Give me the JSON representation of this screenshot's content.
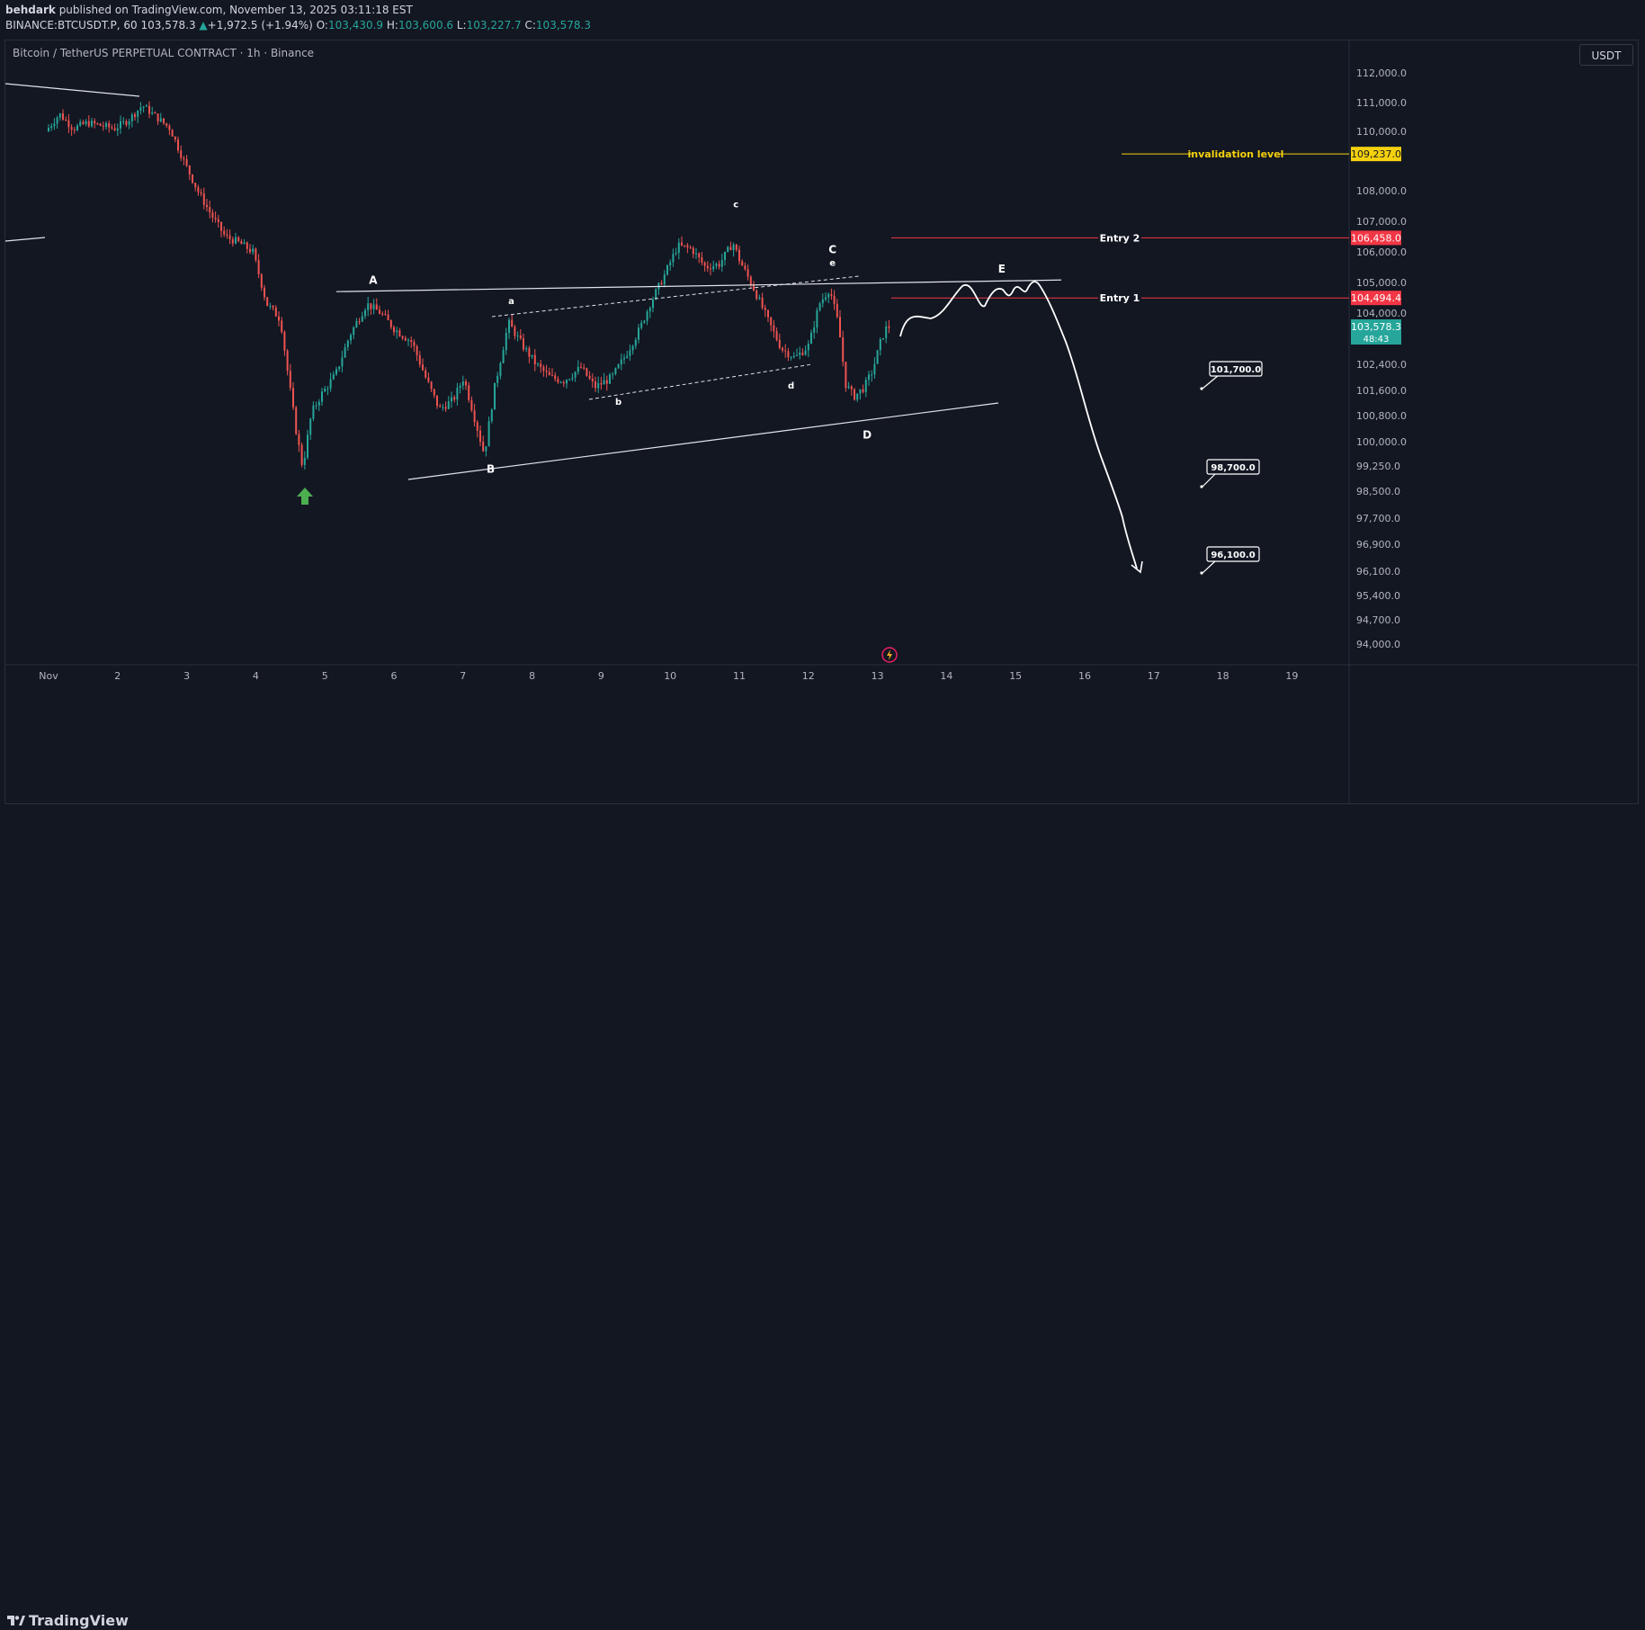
{
  "header": {
    "author": "behdark",
    "published": "published on TradingView.com, November 13, 2025 03:11:18 EST",
    "symbol": "BINANCE:BTCUSDT.P, 60",
    "last": "103,578.3",
    "change": "+1,972.5 (+1.94%)",
    "open_label": "O:",
    "open": "103,430.9",
    "high_label": "H:",
    "high": "103,600.6",
    "low_label": "L:",
    "low": "103,227.7",
    "close_label": "C:",
    "close": "103,578.3"
  },
  "chart_title": "Bitcoin / TetherUS PERPETUAL CONTRACT · 1h · Binance",
  "currency": "USDT",
  "footer": {
    "brand": "TradingView"
  },
  "colors": {
    "background": "#131722",
    "up": "#26a69a",
    "down": "#ef5350",
    "yellow": "#f5d10e",
    "entry_red": "#f23645"
  },
  "chart_data": {
    "type": "candlestick",
    "x_ticks": [
      "Nov",
      "2",
      "3",
      "4",
      "5",
      "6",
      "7",
      "8",
      "9",
      "10",
      "11",
      "12",
      "13",
      "14",
      "15",
      "16",
      "17",
      "18",
      "19"
    ],
    "y_ticks": [
      "112,000.0",
      "111,000.0",
      "110,000.0",
      "108,000.0",
      "107,000.0",
      "106,000.0",
      "105,000.0",
      "104,000.0",
      "102,400.0",
      "101,600.0",
      "100,800.0",
      "100,000.0",
      "99,250.0",
      "98,500.0",
      "97,700.0",
      "96,900.0",
      "96,100.0",
      "95,400.0",
      "94,700.0",
      "94,000.0"
    ],
    "y_tick_values": [
      112000,
      111000,
      110000,
      108000,
      107000,
      106000,
      105000,
      104000,
      102400,
      101600,
      100800,
      100000,
      99250,
      98500,
      97700,
      96900,
      96100,
      95400,
      94700,
      94000
    ],
    "price_path": [
      [
        1.0,
        110000
      ],
      [
        1.2,
        110600
      ],
      [
        1.4,
        110100
      ],
      [
        1.6,
        110300
      ],
      [
        1.8,
        110200
      ],
      [
        2.0,
        110100
      ],
      [
        2.2,
        110400
      ],
      [
        2.4,
        110900
      ],
      [
        2.6,
        110500
      ],
      [
        2.8,
        110100
      ],
      [
        3.0,
        109000
      ],
      [
        3.2,
        108000
      ],
      [
        3.4,
        107200
      ],
      [
        3.6,
        106500
      ],
      [
        3.8,
        106300
      ],
      [
        4.0,
        106000
      ],
      [
        4.2,
        104300
      ],
      [
        4.4,
        103800
      ],
      [
        4.5,
        102200
      ],
      [
        4.62,
        100400
      ],
      [
        4.72,
        99200
      ],
      [
        4.85,
        100900
      ],
      [
        5.0,
        101500
      ],
      [
        5.2,
        102100
      ],
      [
        5.4,
        103300
      ],
      [
        5.65,
        104300
      ],
      [
        5.85,
        104000
      ],
      [
        6.05,
        103500
      ],
      [
        6.3,
        103100
      ],
      [
        6.5,
        102000
      ],
      [
        6.7,
        101000
      ],
      [
        6.9,
        101300
      ],
      [
        7.05,
        102000
      ],
      [
        7.2,
        100800
      ],
      [
        7.35,
        99600
      ],
      [
        7.5,
        101700
      ],
      [
        7.7,
        103700
      ],
      [
        7.9,
        103000
      ],
      [
        8.1,
        102400
      ],
      [
        8.3,
        102000
      ],
      [
        8.5,
        101900
      ],
      [
        8.75,
        102300
      ],
      [
        8.95,
        101700
      ],
      [
        9.2,
        102000
      ],
      [
        9.4,
        102700
      ],
      [
        9.6,
        103500
      ],
      [
        9.75,
        104300
      ],
      [
        9.95,
        105200
      ],
      [
        10.15,
        106200
      ],
      [
        10.35,
        106100
      ],
      [
        10.55,
        105500
      ],
      [
        10.75,
        105600
      ],
      [
        10.95,
        106300
      ],
      [
        11.05,
        105700
      ],
      [
        11.25,
        104800
      ],
      [
        11.45,
        103800
      ],
      [
        11.65,
        102900
      ],
      [
        11.85,
        102600
      ],
      [
        12.05,
        103000
      ],
      [
        12.2,
        104300
      ],
      [
        12.35,
        104800
      ],
      [
        12.48,
        103600
      ],
      [
        12.58,
        101800
      ],
      [
        12.7,
        101400
      ],
      [
        12.85,
        101700
      ],
      [
        12.97,
        102200
      ],
      [
        13.1,
        103200
      ],
      [
        13.18,
        103578
      ]
    ],
    "annotations": {
      "labels": [
        {
          "text": "A",
          "x": 5.7,
          "y": 104950
        },
        {
          "text": "B",
          "x": 7.4,
          "y": 99050
        },
        {
          "text": "C",
          "x": 12.35,
          "y": 105950
        },
        {
          "text": "D",
          "x": 12.85,
          "y": 100100
        },
        {
          "text": "E",
          "x": 14.8,
          "y": 105320
        },
        {
          "text": "a",
          "x": 7.7,
          "y": 104300
        },
        {
          "text": "b",
          "x": 9.25,
          "y": 101150
        },
        {
          "text": "c",
          "x": 10.95,
          "y": 107450
        },
        {
          "text": "d",
          "x": 11.75,
          "y": 101650
        },
        {
          "text": "e",
          "x": 12.35,
          "y": 105550
        }
      ],
      "levels": [
        {
          "label": "invalidation level",
          "price": 109237,
          "value_text": "109,237.0",
          "color": "#f5d10e"
        },
        {
          "label": "Entry 2",
          "price": 106458,
          "value_text": "106,458.0",
          "color": "#f23645"
        },
        {
          "label": "Entry 1",
          "price": 104494.4,
          "value_text": "104,494.4",
          "color": "#f23645"
        }
      ],
      "targets": [
        "101,700.0",
        "98,700.0",
        "96,100.0"
      ],
      "target_prices": [
        101700,
        98700,
        96100
      ],
      "current_price": "103,578.3",
      "countdown": "48:43"
    }
  }
}
